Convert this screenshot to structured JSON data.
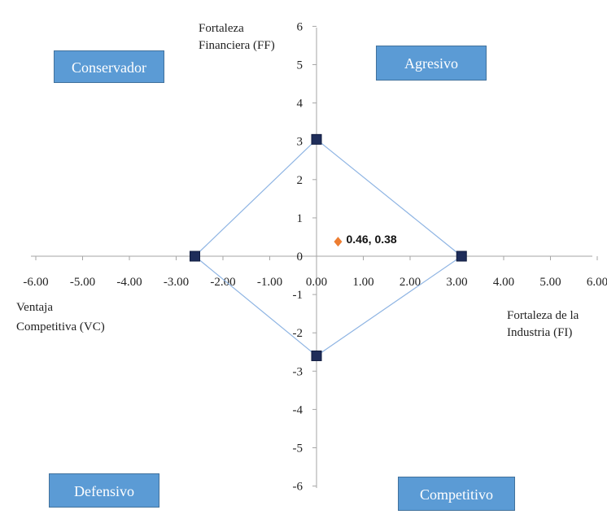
{
  "chart_data": {
    "type": "scatter",
    "xlim": [
      -6,
      6
    ],
    "ylim": [
      -6,
      6
    ],
    "x_ticks": [
      "-6.00",
      "-5.00",
      "-4.00",
      "-3.00",
      "-2.00",
      "-1.00",
      "0.00",
      "1.00",
      "2.00",
      "3.00",
      "4.00",
      "5.00",
      "6.00"
    ],
    "y_ticks": [
      "6",
      "5",
      "4",
      "3",
      "2",
      "1",
      "0",
      "-1",
      "-2",
      "-3",
      "-4",
      "-5",
      "-6"
    ],
    "y_axis_label": [
      "Fortaleza",
      "Financiera (FF)"
    ],
    "x_axis_label_right": [
      "Fortaleza de la",
      "Industria (FI)"
    ],
    "x_axis_label_left": [
      "Ventaja",
      "Competitiva (VC)"
    ],
    "polygon": {
      "points": [
        {
          "x": 0.0,
          "y": 3.05
        },
        {
          "x": 3.1,
          "y": 0.0
        },
        {
          "x": 0.0,
          "y": -2.6
        },
        {
          "x": -2.6,
          "y": 0.0
        }
      ],
      "line_color": "#8eb4e3",
      "marker_color": "#1f2d5a"
    },
    "result_point": {
      "x": 0.46,
      "y": 0.38,
      "label": "0.46, 0.38",
      "color": "#ed7d31"
    },
    "quadrants": {
      "top_left": "Conservador",
      "top_right": "Agresivo",
      "bottom_left": "Defensivo",
      "bottom_right": "Competitivo"
    },
    "grid": false
  }
}
